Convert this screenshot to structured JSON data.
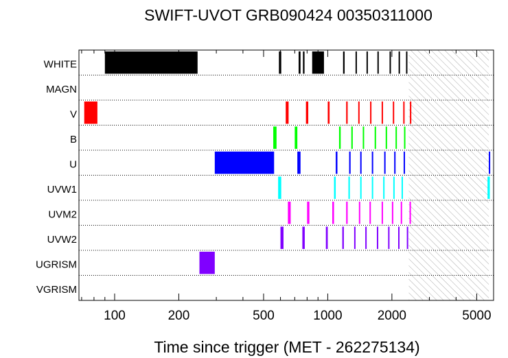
{
  "chart_data": {
    "type": "bar",
    "subtype": "exposure-timeline",
    "title": "SWIFT-UVOT GRB090424 00350311000",
    "xlabel": "Time since trigger (MET - 262275134)",
    "ylabel": "",
    "xscale": "log",
    "xlim": [
      68,
      6000
    ],
    "xticks": [
      100,
      200,
      500,
      1000,
      2000,
      5000
    ],
    "xtick_labels": [
      "100",
      "200",
      "500",
      "1000",
      "2000",
      "5000"
    ],
    "no_data_region": [
      2400,
      5700
    ],
    "filters": [
      "WHITE",
      "MAGN",
      "V",
      "B",
      "U",
      "UVW1",
      "UVM2",
      "UVW2",
      "UGRISM",
      "VGRISM"
    ],
    "series": [
      {
        "name": "WHITE",
        "color": "#000000",
        "exposures": [
          [
            90,
            245
          ],
          [
            590,
            605
          ],
          [
            730,
            745
          ],
          [
            765,
            778
          ],
          [
            845,
            960
          ],
          [
            1180,
            1200
          ],
          [
            1350,
            1370
          ],
          [
            1520,
            1540
          ],
          [
            1710,
            1730
          ],
          [
            1950,
            1975
          ],
          [
            2150,
            2175
          ],
          [
            2330,
            2355
          ]
        ]
      },
      {
        "name": "MAGN",
        "color": "#000000",
        "exposures": []
      },
      {
        "name": "V",
        "color": "#ff0000",
        "exposures": [
          [
            72,
            83
          ],
          [
            635,
            655
          ],
          [
            790,
            810
          ],
          [
            1000,
            1020
          ],
          [
            1220,
            1240
          ],
          [
            1390,
            1410
          ],
          [
            1580,
            1600
          ],
          [
            1790,
            1810
          ],
          [
            2020,
            2040
          ],
          [
            2260,
            2280
          ],
          [
            2430,
            2450
          ]
        ]
      },
      {
        "name": "B",
        "color": "#00ff00",
        "exposures": [
          [
            555,
            575
          ],
          [
            700,
            720
          ],
          [
            1130,
            1150
          ],
          [
            1290,
            1310
          ],
          [
            1460,
            1480
          ],
          [
            1660,
            1680
          ],
          [
            1870,
            1890
          ],
          [
            2080,
            2100
          ],
          [
            2280,
            2300
          ]
        ]
      },
      {
        "name": "U",
        "color": "#0000ff",
        "exposures": [
          [
            295,
            560
          ],
          [
            720,
            745
          ],
          [
            1090,
            1110
          ],
          [
            1260,
            1280
          ],
          [
            1420,
            1440
          ],
          [
            1610,
            1630
          ],
          [
            1840,
            1860
          ],
          [
            2050,
            2070
          ],
          [
            2270,
            2290
          ],
          [
            5700,
            5760
          ]
        ]
      },
      {
        "name": "UVW1",
        "color": "#00ffff",
        "exposures": [
          [
            585,
            605
          ],
          [
            1070,
            1090
          ],
          [
            1250,
            1270
          ],
          [
            1420,
            1440
          ],
          [
            1610,
            1630
          ],
          [
            1820,
            1840
          ],
          [
            2030,
            2050
          ],
          [
            2220,
            2240
          ],
          [
            5620,
            5760
          ]
        ]
      },
      {
        "name": "UVM2",
        "color": "#ff00ff",
        "exposures": [
          [
            650,
            670
          ],
          [
            800,
            820
          ],
          [
            1050,
            1070
          ],
          [
            1220,
            1240
          ],
          [
            1400,
            1420
          ],
          [
            1570,
            1590
          ],
          [
            1790,
            1810
          ],
          [
            2000,
            2020
          ],
          [
            2200,
            2220
          ],
          [
            2420,
            2440
          ]
        ]
      },
      {
        "name": "UVW2",
        "color": "#8000ff",
        "exposures": [
          [
            600,
            620
          ],
          [
            760,
            780
          ],
          [
            980,
            1000
          ],
          [
            1170,
            1190
          ],
          [
            1330,
            1350
          ],
          [
            1500,
            1520
          ],
          [
            1700,
            1720
          ],
          [
            1920,
            1940
          ],
          [
            2140,
            2160
          ],
          [
            2350,
            2370
          ]
        ]
      },
      {
        "name": "UGRISM",
        "color": "#8000ff",
        "exposures": [
          [
            250,
            295
          ]
        ]
      },
      {
        "name": "VGRISM",
        "color": "#000000",
        "exposures": []
      }
    ]
  }
}
